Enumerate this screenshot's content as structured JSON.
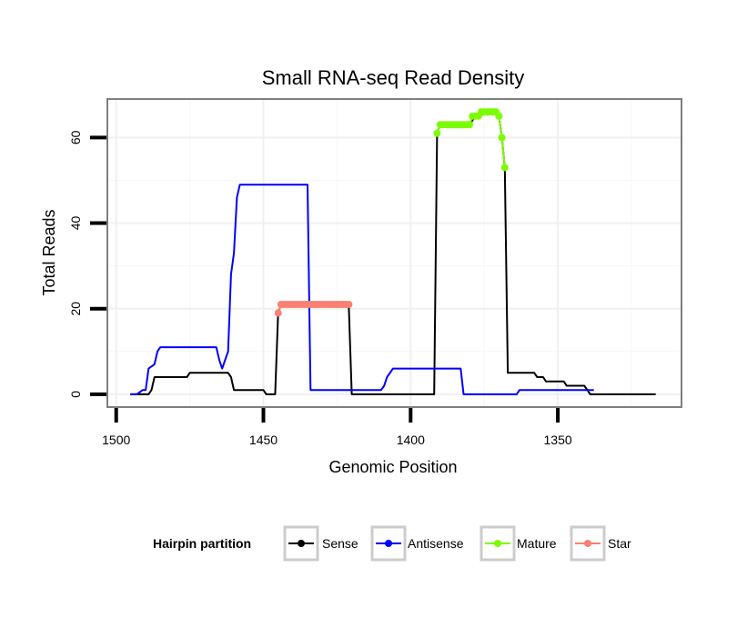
{
  "chart_data": {
    "type": "line",
    "title": "Small RNA-seq Read Density",
    "xlabel": "Genomic Position",
    "ylabel": "Total Reads",
    "xlim": [
      1503,
      1308
    ],
    "x_reversed": true,
    "ylim": [
      -3,
      69
    ],
    "grid": true,
    "x_ticks": [
      1500,
      1450,
      1400,
      1350
    ],
    "x_tick_labels": [
      "1500",
      "1450",
      "1400",
      "1350"
    ],
    "y_ticks": [
      0,
      20,
      40,
      60
    ],
    "y_tick_labels": [
      "0",
      "20",
      "40",
      "60"
    ],
    "legend": {
      "title": "Hairpin partition",
      "placement": "bottom",
      "entries": [
        {
          "name": "Sense",
          "color": "#000000"
        },
        {
          "name": "Antisense",
          "color": "#0000ff"
        },
        {
          "name": "Mature",
          "color": "#7cfc00"
        },
        {
          "name": "Star",
          "color": "#fa8072"
        }
      ]
    },
    "series": [
      {
        "name": "Sense",
        "color": "#000000",
        "markers": false,
        "x": [
          1495,
          1489,
          1488,
          1487,
          1476,
          1475,
          1463,
          1462,
          1461,
          1460,
          1450,
          1449,
          1446,
          1445,
          1444,
          1443,
          1421,
          1420,
          1392,
          1391,
          1390,
          1382,
          1381,
          1380,
          1378,
          1377,
          1373,
          1372,
          1371,
          1370,
          1369,
          1368,
          1367,
          1358,
          1357,
          1355,
          1354,
          1348,
          1347,
          1341,
          1340,
          1339,
          1317
        ],
        "values": [
          0,
          0,
          1,
          4,
          4,
          5,
          5,
          5,
          4,
          1,
          1,
          0,
          0,
          19,
          21,
          21,
          21,
          0,
          0,
          61,
          63,
          63,
          63,
          63,
          65,
          65,
          66,
          66,
          66,
          65,
          60,
          53,
          5,
          5,
          4,
          4,
          3,
          3,
          2,
          2,
          1,
          0,
          0
        ]
      },
      {
        "name": "Antisense",
        "color": "#0000ff",
        "markers": false,
        "x": [
          1495,
          1493,
          1491,
          1490,
          1489,
          1487,
          1486,
          1485,
          1466,
          1465,
          1464,
          1463,
          1462,
          1461,
          1460,
          1459,
          1458,
          1457,
          1435,
          1434,
          1410,
          1409,
          1408,
          1407,
          1406,
          1405,
          1405,
          1383,
          1382,
          1364,
          1363,
          1338
        ],
        "values": [
          0,
          0,
          1,
          1,
          6,
          7,
          10,
          11,
          11,
          8,
          6,
          8,
          10,
          28,
          33,
          46,
          49,
          49,
          49,
          1,
          1,
          2,
          4,
          5,
          6,
          6,
          6,
          6,
          0,
          0,
          1,
          1
        ]
      },
      {
        "name": "Mature",
        "color": "#7cfc00",
        "markers": true,
        "x": [
          1391,
          1390,
          1389,
          1388,
          1387,
          1386,
          1385,
          1384,
          1383,
          1382,
          1381,
          1380,
          1379,
          1378,
          1377,
          1376,
          1375,
          1374,
          1373,
          1372,
          1371,
          1370,
          1369,
          1368
        ],
        "values": [
          61,
          63,
          63,
          63,
          63,
          63,
          63,
          63,
          63,
          63,
          63,
          63,
          65,
          65,
          65,
          66,
          66,
          66,
          66,
          66,
          66,
          65,
          60,
          53
        ]
      },
      {
        "name": "Star",
        "color": "#fa8072",
        "markers": true,
        "x": [
          1445,
          1444,
          1443,
          1442,
          1441,
          1440,
          1439,
          1438,
          1437,
          1436,
          1435,
          1434,
          1433,
          1432,
          1431,
          1430,
          1429,
          1428,
          1427,
          1426,
          1425,
          1424,
          1423,
          1422,
          1421
        ],
        "values": [
          19,
          21,
          21,
          21,
          21,
          21,
          21,
          21,
          21,
          21,
          21,
          21,
          21,
          21,
          21,
          21,
          21,
          21,
          21,
          21,
          21,
          21,
          21,
          21,
          21
        ]
      }
    ]
  }
}
